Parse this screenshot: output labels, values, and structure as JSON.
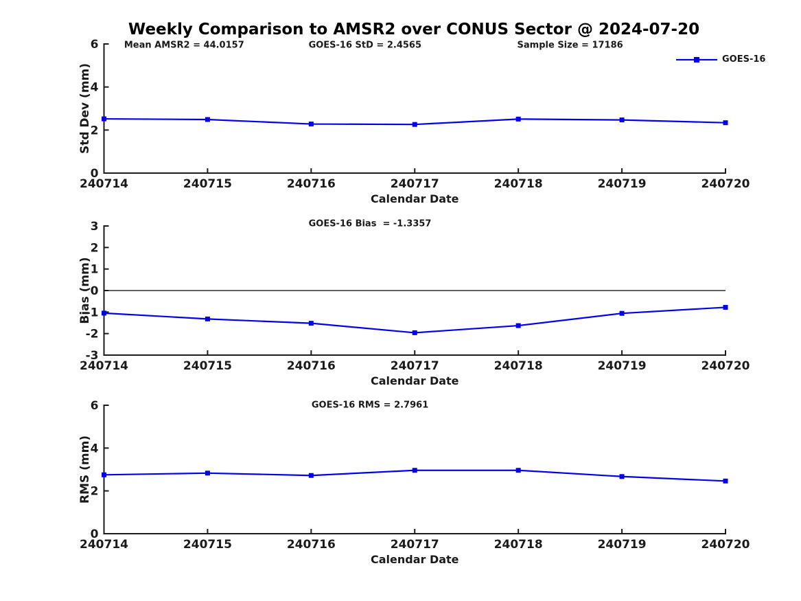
{
  "title": "Weekly Comparison to AMSR2 over CONUS Sector @ 2024-07-20",
  "legend": {
    "label": "GOES-16"
  },
  "colors": {
    "series": "#0000EE",
    "zero_line": "#606060",
    "axis": "#1a1a1a",
    "text": "#1a1a1a"
  },
  "chart_data": [
    {
      "type": "line",
      "categories": [
        "240714",
        "240715",
        "240716",
        "240717",
        "240718",
        "240719",
        "240720"
      ],
      "series": [
        {
          "name": "GOES-16",
          "values": [
            2.52,
            2.49,
            2.28,
            2.26,
            2.51,
            2.47,
            2.34
          ]
        }
      ],
      "xlabel": "Calendar Date",
      "ylabel": "Std Dev (mm)",
      "ylim": [
        0,
        6
      ],
      "yticks": [
        0,
        2,
        4,
        6
      ],
      "zero_line": false,
      "grid": false,
      "marker": "square",
      "legend_position": "top-right-outside",
      "annotations": [
        "Mean AMSR2 = 44.0157",
        "GOES-16 StD = 2.4565",
        "Sample Size = 17186"
      ]
    },
    {
      "type": "line",
      "categories": [
        "240714",
        "240715",
        "240716",
        "240717",
        "240718",
        "240719",
        "240720"
      ],
      "series": [
        {
          "name": "GOES-16",
          "values": [
            -1.05,
            -1.32,
            -1.52,
            -1.96,
            -1.63,
            -1.06,
            -0.78
          ]
        }
      ],
      "xlabel": "Calendar Date",
      "ylabel": "Bias (mm)",
      "ylim": [
        -3,
        3
      ],
      "yticks": [
        -3,
        -2,
        -1,
        0,
        1,
        2,
        3
      ],
      "zero_line": true,
      "grid": false,
      "marker": "square",
      "annotations": [
        "GOES-16 Bias  = -1.3357"
      ]
    },
    {
      "type": "line",
      "categories": [
        "240714",
        "240715",
        "240716",
        "240717",
        "240718",
        "240719",
        "240720"
      ],
      "series": [
        {
          "name": "GOES-16",
          "values": [
            2.75,
            2.83,
            2.72,
            2.96,
            2.96,
            2.67,
            2.46
          ]
        }
      ],
      "xlabel": "Calendar Date",
      "ylabel": "RMS (mm)",
      "ylim": [
        0,
        6
      ],
      "yticks": [
        0,
        2,
        4,
        6
      ],
      "zero_line": false,
      "grid": false,
      "marker": "square",
      "annotations": [
        "GOES-16 RMS = 2.7961"
      ]
    }
  ]
}
